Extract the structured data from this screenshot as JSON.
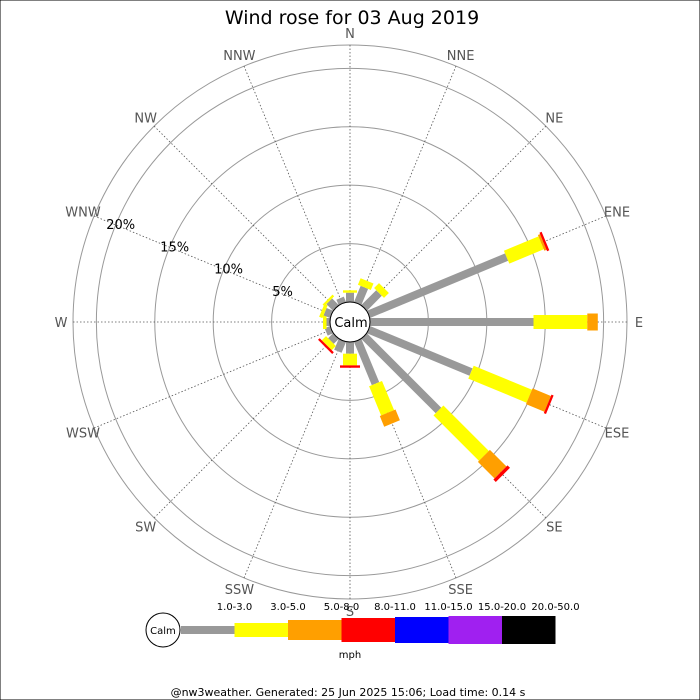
{
  "chart_data": {
    "type": "wind-rose",
    "title": "Wind rose for 03 Aug 2019",
    "calm_label": "Calm",
    "directions": [
      "N",
      "NNE",
      "NE",
      "ENE",
      "E",
      "ESE",
      "SE",
      "SSE",
      "S",
      "SSW",
      "SW",
      "WSW",
      "W",
      "WNW",
      "NW",
      "NNW"
    ],
    "rings": [
      5,
      10,
      15,
      20
    ],
    "ring_labels": [
      "5%",
      "10%",
      "15%",
      "20%"
    ],
    "rmax": 22,
    "unit": "mph",
    "bins": [
      {
        "label": "1.0-3.0",
        "color": "#999999"
      },
      {
        "label": "3.0-5.0",
        "color": "#ffff00"
      },
      {
        "label": "5.0-8.0",
        "color": "#ff9f00"
      },
      {
        "label": "8.0-11.0",
        "color": "#ff0000"
      },
      {
        "label": "11.0-15.0",
        "color": "#0000ff"
      },
      {
        "label": "15.0-20.0",
        "color": "#a020f0"
      },
      {
        "label": "20.0-50.0",
        "color": "#000000"
      }
    ],
    "series": [
      {
        "direction": "N",
        "values": [
          0.8,
          0.2,
          0,
          0,
          0,
          0,
          0
        ]
      },
      {
        "direction": "NNE",
        "values": [
          1.5,
          0.6,
          0,
          0,
          0,
          0,
          0
        ]
      },
      {
        "direction": "NE",
        "values": [
          1.8,
          0.6,
          0,
          0,
          0,
          0,
          0
        ]
      },
      {
        "direction": "ENE",
        "values": [
          12.8,
          3.2,
          0.2,
          0.2,
          0,
          0,
          0
        ]
      },
      {
        "direction": "E",
        "values": [
          14.0,
          4.6,
          0.9,
          0,
          0,
          0,
          0
        ]
      },
      {
        "direction": "ESE",
        "values": [
          9.5,
          5.4,
          1.7,
          0.2,
          0,
          0,
          0
        ]
      },
      {
        "direction": "SE",
        "values": [
          9.0,
          5.5,
          2.0,
          0.3,
          0,
          0,
          0
        ]
      },
      {
        "direction": "SSE",
        "values": [
          4.0,
          2.7,
          1.0,
          0,
          0,
          0,
          0
        ]
      },
      {
        "direction": "S",
        "values": [
          1.0,
          1.0,
          0,
          0.2,
          0,
          0,
          0
        ]
      },
      {
        "direction": "SSW",
        "values": [
          1.0,
          0,
          0,
          0,
          0,
          0,
          0
        ]
      },
      {
        "direction": "SW",
        "values": [
          0.6,
          0.5,
          0,
          0.2,
          0,
          0,
          0
        ]
      },
      {
        "direction": "WSW",
        "values": [
          0.5,
          0,
          0,
          0,
          0,
          0,
          0
        ]
      },
      {
        "direction": "W",
        "values": [
          0.3,
          0.3,
          0,
          0,
          0,
          0,
          0
        ]
      },
      {
        "direction": "WNW",
        "values": [
          0.6,
          0.3,
          0,
          0,
          0,
          0,
          0
        ]
      },
      {
        "direction": "NW",
        "values": [
          0.8,
          0.2,
          0,
          0,
          0,
          0,
          0
        ]
      },
      {
        "direction": "NNW",
        "values": [
          0.5,
          0,
          0,
          0,
          0,
          0,
          0
        ]
      }
    ]
  },
  "footer": "@nw3weather. Generated: 25 Jun 2025 15:06; Load time: 0.14 s"
}
